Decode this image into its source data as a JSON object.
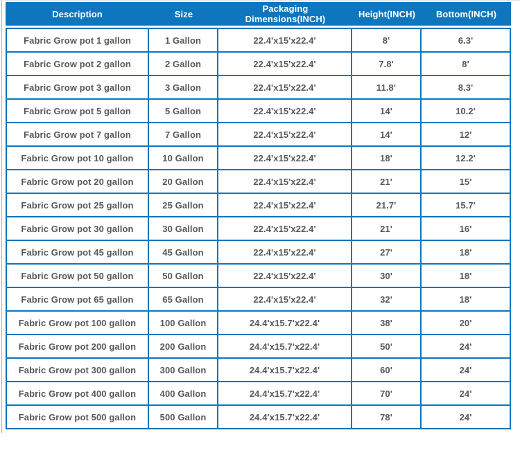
{
  "colors": {
    "header_bg": "#0e76bd",
    "border_blue": "#0f75bb",
    "cell_text": "#58585a",
    "header_text": "#ffffff",
    "left_hairline": "#b3b3b3"
  },
  "table": {
    "columns": [
      "Description",
      "Size",
      "Packaging Dimensions(INCH)",
      "Height(INCH)",
      "Bottom(INCH)"
    ],
    "rows": [
      [
        "Fabric Grow pot 1 gallon",
        "1 Gallon",
        "22.4'x15'x22.4'",
        "8'",
        "6.3'"
      ],
      [
        "Fabric Grow pot 2 gallon",
        "2 Gallon",
        "22.4'x15'x22.4'",
        "7.8'",
        "8'"
      ],
      [
        "Fabric Grow pot 3 gallon",
        "3 Gallon",
        "22.4'x15'x22.4'",
        "11.8'",
        "8.3'"
      ],
      [
        "Fabric Grow pot 5 gallon",
        "5 Gallon",
        "22.4'x15'x22.4'",
        "14'",
        "10.2'"
      ],
      [
        "Fabric Grow pot 7 gallon",
        "7 Gallon",
        "22.4'x15'x22.4'",
        "14'",
        "12'"
      ],
      [
        "Fabric Grow pot 10 gallon",
        "10 Gallon",
        "22.4'x15'x22.4'",
        "18'",
        "12.2'"
      ],
      [
        "Fabric Grow pot 20 gallon",
        "20 Gallon",
        "22.4'x15'x22.4'",
        "21'",
        "15'"
      ],
      [
        "Fabric Grow pot 25 gallon",
        "25 Gallon",
        "22.4'x15'x22.4'",
        "21.7'",
        "15.7'"
      ],
      [
        "Fabric Grow pot 30 gallon",
        "30 Gallon",
        "22.4'x15'x22.4'",
        "21'",
        "16'"
      ],
      [
        "Fabric Grow pot 45 gallon",
        "45 Gallon",
        "22.4'x15'x22.4'",
        "27'",
        "18'"
      ],
      [
        "Fabric Grow pot 50 gallon",
        "50 Gallon",
        "22.4'x15'x22.4'",
        "30'",
        "18'"
      ],
      [
        "Fabric Grow pot 65 gallon",
        "65 Gallon",
        "22.4'x15'x22.4'",
        "32'",
        "18'"
      ],
      [
        "Fabric Grow pot 100 gallon",
        "100 Gallon",
        "24.4'x15.7'x22.4'",
        "38'",
        "20'"
      ],
      [
        "Fabric Grow pot 200 gallon",
        "200 Gallon",
        "24.4'x15.7'x22.4'",
        "50'",
        "24'"
      ],
      [
        "Fabric Grow pot 300 gallon",
        "300 Gallon",
        "24.4'x15.7'x22.4'",
        "60'",
        "24'"
      ],
      [
        "Fabric Grow pot 400 gallon",
        "400 Gallon",
        "24.4'x15.7'x22.4'",
        "70'",
        "24'"
      ],
      [
        "Fabric Grow pot 500 gallon",
        "500 Gallon",
        "24.4'x15.7'x22.4'",
        "78'",
        "24'"
      ]
    ]
  }
}
